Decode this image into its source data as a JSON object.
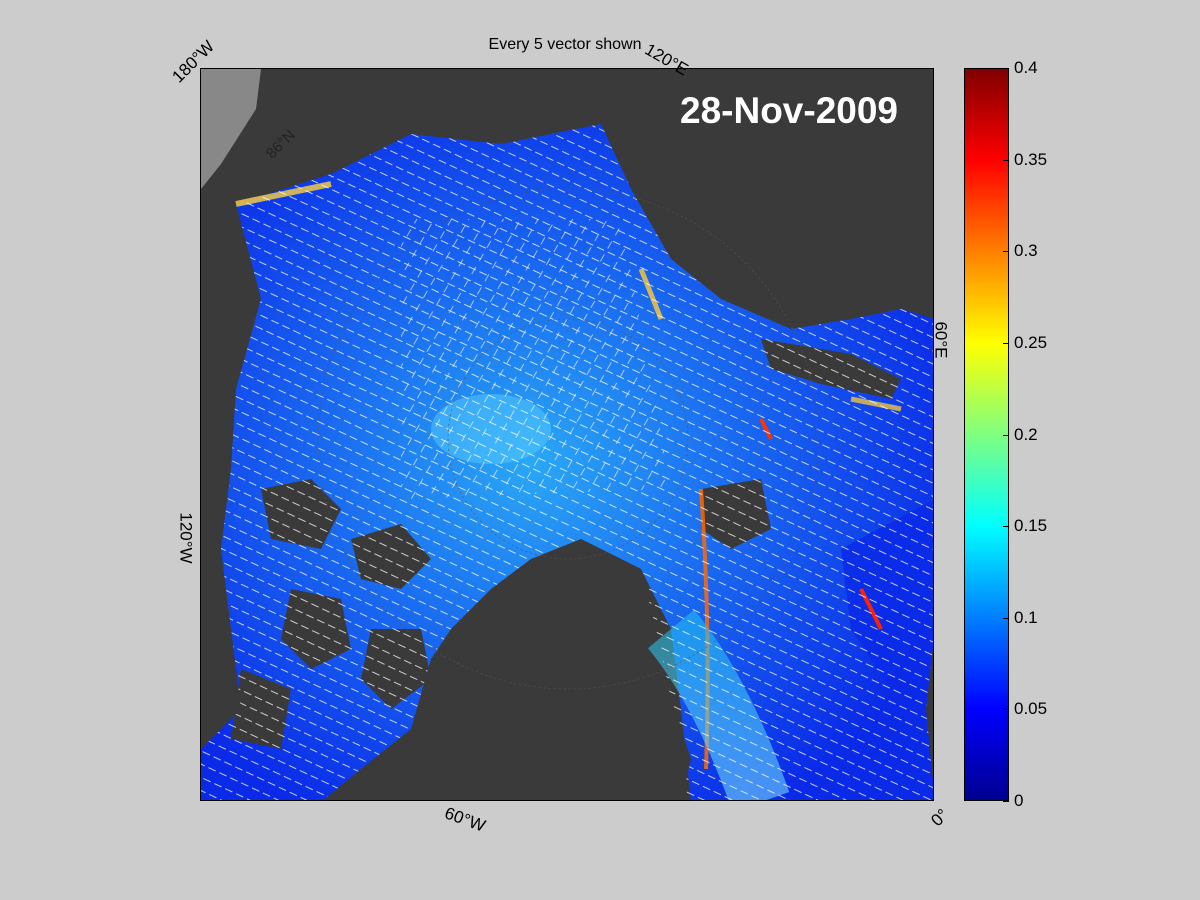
{
  "title": "Every 5 vector shown",
  "date": "28-Nov-2009",
  "map": {
    "longitude_labels": [
      {
        "id": "lon-180w",
        "text": "180°W"
      },
      {
        "id": "lon-120e",
        "text": "120°E"
      },
      {
        "id": "lon-60e",
        "text": "60°E"
      },
      {
        "id": "lon-120w",
        "text": "120°W"
      },
      {
        "id": "lon-60w",
        "text": "60°W"
      },
      {
        "id": "lon-0",
        "text": "0°"
      }
    ],
    "latitude_labels": [
      "86°N"
    ],
    "colors": {
      "land": "#3a3a3a",
      "outside_domain": "#888888",
      "ice_low": "#0000ee",
      "ice_high": "#ff0000",
      "vectors": "#ffffff"
    }
  },
  "colorbar": {
    "min": 0,
    "max": 0.4,
    "colormap": "jet",
    "ticks": [
      "0",
      "0.05",
      "0.1",
      "0.15",
      "0.2",
      "0.25",
      "0.3",
      "0.35",
      "0.4"
    ],
    "tick_values": [
      0,
      0.05,
      0.1,
      0.15,
      0.2,
      0.25,
      0.3,
      0.35,
      0.4
    ]
  }
}
